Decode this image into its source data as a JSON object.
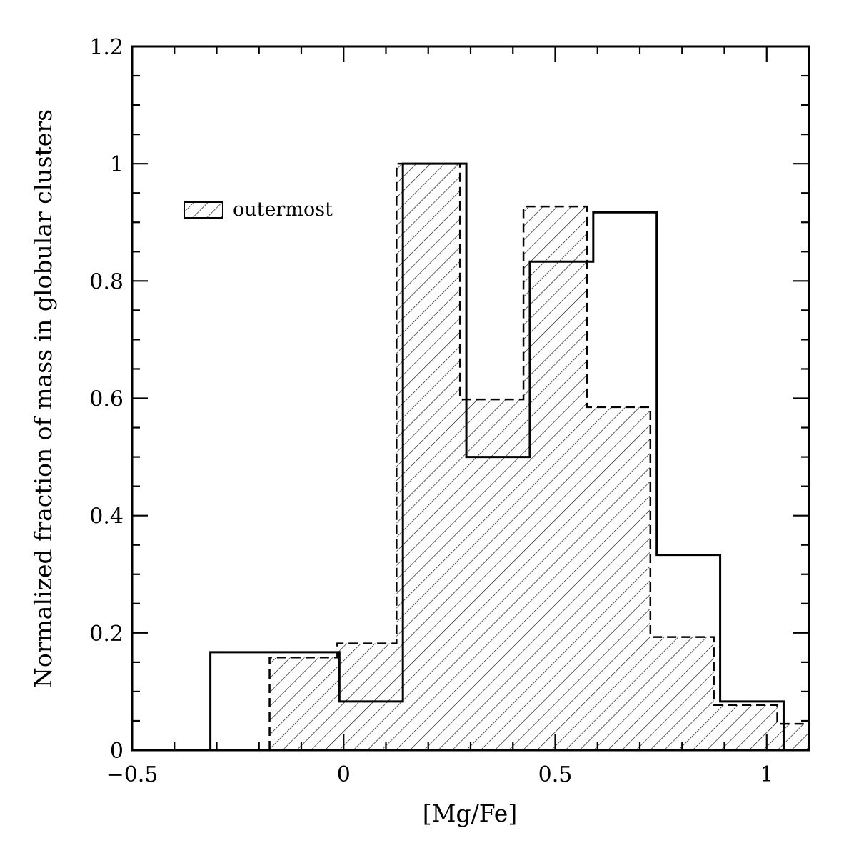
{
  "chart_data": {
    "type": "bar",
    "subtype": "step histogram",
    "xlabel": "[Mg/Fe]",
    "ylabel": "Normalized fraction of mass in globular clusters",
    "xlim": [
      -0.5,
      1.1
    ],
    "ylim": [
      0,
      1.2
    ],
    "x_tick_labels": [
      "−0.5",
      "0",
      "0.5",
      "1"
    ],
    "x_tick_values": [
      -0.5,
      0,
      0.5,
      1
    ],
    "y_tick_labels": [
      "0",
      "0.2",
      "0.4",
      "0.6",
      "0.8",
      "1",
      "1.2"
    ],
    "y_tick_values": [
      0,
      0.2,
      0.4,
      0.6,
      0.8,
      1.0,
      1.2
    ],
    "grid": false,
    "legend": {
      "position": "upper-left",
      "entries": [
        "outermost"
      ]
    },
    "series": [
      {
        "style": "solid",
        "bin_edges": [
          -0.315,
          -0.01,
          0.14,
          0.29,
          0.44,
          0.59,
          0.74,
          0.89,
          1.04
        ],
        "values": [
          0.167,
          0.083,
          1.0,
          0.5,
          0.833,
          0.917,
          0.333,
          0.083
        ]
      },
      {
        "name": "outermost",
        "style": "dashed, hatched",
        "bin_edges": [
          -0.175,
          -0.015,
          0.125,
          0.275,
          0.425,
          0.575,
          0.725,
          0.875,
          1.025,
          1.1
        ],
        "values": [
          0.158,
          0.182,
          1.0,
          0.598,
          0.927,
          0.585,
          0.193,
          0.077,
          0.045
        ]
      }
    ]
  }
}
